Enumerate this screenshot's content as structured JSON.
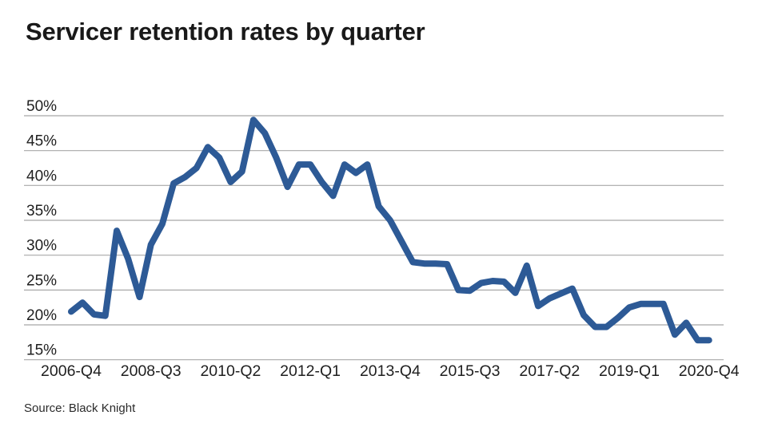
{
  "page": {
    "title": "Servicer retention rates by quarter",
    "source": "Source: Black Knight"
  },
  "chart_data": {
    "type": "line",
    "title": "Servicer retention rates by quarter",
    "source": "Source: Black Knight",
    "series_name": "Servicer retention rate (%)",
    "x": [
      "2006-Q4",
      "2007-Q1",
      "2007-Q2",
      "2007-Q3",
      "2007-Q4",
      "2008-Q1",
      "2008-Q2",
      "2008-Q3",
      "2008-Q4",
      "2009-Q1",
      "2009-Q2",
      "2009-Q3",
      "2009-Q4",
      "2010-Q1",
      "2010-Q2",
      "2010-Q3",
      "2010-Q4",
      "2011-Q1",
      "2011-Q2",
      "2011-Q3",
      "2011-Q4",
      "2012-Q1",
      "2012-Q2",
      "2012-Q3",
      "2012-Q4",
      "2013-Q1",
      "2013-Q2",
      "2013-Q3",
      "2013-Q4",
      "2014-Q1",
      "2014-Q2",
      "2014-Q3",
      "2014-Q4",
      "2015-Q1",
      "2015-Q2",
      "2015-Q3",
      "2015-Q4",
      "2016-Q1",
      "2016-Q2",
      "2016-Q3",
      "2016-Q4",
      "2017-Q1",
      "2017-Q2",
      "2017-Q3",
      "2017-Q4",
      "2018-Q1",
      "2018-Q2",
      "2018-Q3",
      "2018-Q4",
      "2019-Q1",
      "2019-Q2",
      "2019-Q3",
      "2019-Q4",
      "2020-Q1",
      "2020-Q2",
      "2020-Q3",
      "2020-Q4"
    ],
    "values": [
      21.9,
      23.2,
      21.5,
      21.3,
      33.5,
      29.5,
      24.0,
      31.5,
      34.5,
      40.3,
      41.2,
      42.5,
      45.5,
      44.0,
      40.5,
      42.0,
      49.4,
      47.5,
      44.0,
      39.8,
      43.0,
      43.0,
      40.5,
      38.5,
      43.0,
      41.8,
      43.0,
      37.0,
      35.0,
      32.0,
      29.0,
      28.8,
      28.8,
      28.7,
      25.0,
      24.9,
      26.0,
      26.3,
      26.2,
      24.6,
      28.5,
      22.7,
      23.8,
      24.5,
      25.2,
      21.4,
      19.7,
      19.7,
      21.0,
      22.5,
      23.0,
      23.0,
      23.0,
      18.6,
      20.3,
      17.8,
      17.8
    ],
    "x_tick_labels": [
      "2006-Q4",
      "2008-Q3",
      "2010-Q2",
      "2012-Q1",
      "2013-Q4",
      "2015-Q3",
      "2017-Q2",
      "2019-Q1",
      "2020-Q4"
    ],
    "x_tick_indices": [
      0,
      7,
      14,
      21,
      28,
      35,
      42,
      49,
      56
    ],
    "y_ticks": [
      50,
      45,
      40,
      35,
      30,
      25,
      20,
      15
    ],
    "y_tick_suffix": "%",
    "ylim": [
      15,
      50
    ],
    "grid": "horizontal",
    "legend": "none",
    "line_color": "#2d5a96",
    "grid_color": "#a8a8a8",
    "text_color": "#1f1f1f"
  }
}
